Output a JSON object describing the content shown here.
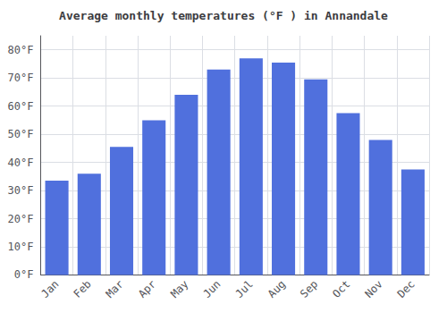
{
  "chart_data": {
    "type": "bar",
    "title": "Average monthly temperatures (°F ) in Annandale",
    "categories": [
      "Jan",
      "Feb",
      "Mar",
      "Apr",
      "May",
      "Jun",
      "Jul",
      "Aug",
      "Sep",
      "Oct",
      "Nov",
      "Dec"
    ],
    "values": [
      33.5,
      36.0,
      45.5,
      55.0,
      64.0,
      73.0,
      77.0,
      75.5,
      69.5,
      57.5,
      48.0,
      37.5
    ],
    "ylim": [
      0,
      85
    ],
    "yticks": [
      {
        "value": 0,
        "label": "0°F"
      },
      {
        "value": 10,
        "label": "10°F"
      },
      {
        "value": 20,
        "label": "20°F"
      },
      {
        "value": 30,
        "label": "30°F"
      },
      {
        "value": 40,
        "label": "40°F"
      },
      {
        "value": 50,
        "label": "50°F"
      },
      {
        "value": 60,
        "label": "60°F"
      },
      {
        "value": 70,
        "label": "70°F"
      },
      {
        "value": 80,
        "label": "80°F"
      }
    ],
    "grid": true
  }
}
